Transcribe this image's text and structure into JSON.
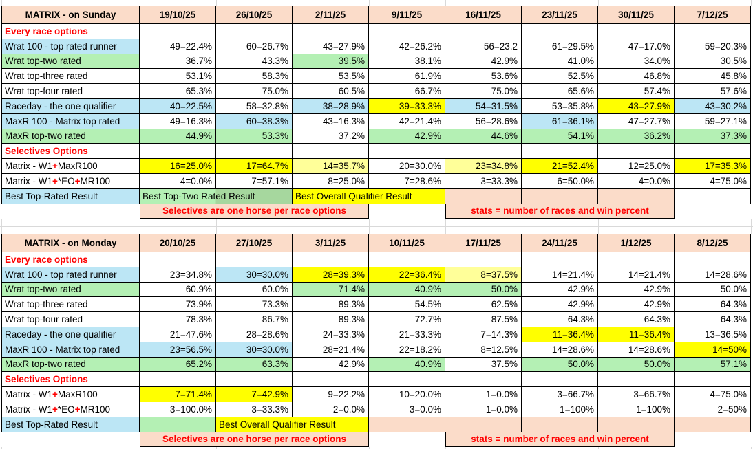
{
  "colors": {
    "peach": "#FBDCC9",
    "light_blue": "#BCE6F5",
    "light_green": "#B4F0B4",
    "medium_green": "#A6D79E",
    "yellow": "#FFFF00",
    "pale_yellow": "#FFFF99",
    "red_text": "#FF0000",
    "border": "#000000",
    "gridline": "#D9D9D9"
  },
  "sheet": {
    "tables": [
      {
        "name": "sunday",
        "title": "MATRIX - on Sunday",
        "dates": [
          "19/10/25",
          "26/10/25",
          "2/11/25",
          "9/11/25",
          "16/11/25",
          "23/11/25",
          "30/11/25",
          "7/12/25"
        ],
        "rows": [
          {
            "kind": "section",
            "label": "Every race options"
          },
          {
            "kind": "data",
            "label": "Wrat 100 - top rated runner",
            "label_bg": "b",
            "cells": [
              [
                "49=22.4%",
                "w"
              ],
              [
                "60=26.7%",
                "w"
              ],
              [
                "43=27.9%",
                "w"
              ],
              [
                "42=26.2%",
                "w"
              ],
              [
                "56=23.2",
                "w"
              ],
              [
                "61=29.5%",
                "w"
              ],
              [
                "47=17.0%",
                "w"
              ],
              [
                "59=20.3%",
                "w"
              ]
            ]
          },
          {
            "kind": "data",
            "label": "Wrat top-two rated",
            "label_bg": "g",
            "cells": [
              [
                "36.7%",
                "w"
              ],
              [
                "43.3%",
                "w"
              ],
              [
                "39.5%",
                "g"
              ],
              [
                "38.1%",
                "w"
              ],
              [
                "42.9%",
                "w"
              ],
              [
                "41.0%",
                "w"
              ],
              [
                "34.0%",
                "w"
              ],
              [
                "30.5%",
                "w"
              ]
            ]
          },
          {
            "kind": "data",
            "label": "Wrat top-three rated",
            "label_bg": "w",
            "cells": [
              [
                "53.1%",
                "w"
              ],
              [
                "58.3%",
                "w"
              ],
              [
                "53.5%",
                "w"
              ],
              [
                "61.9%",
                "w"
              ],
              [
                "53.6%",
                "w"
              ],
              [
                "52.5%",
                "w"
              ],
              [
                "46.8%",
                "w"
              ],
              [
                "45.8%",
                "w"
              ]
            ]
          },
          {
            "kind": "data",
            "label": "Wrat top-four rated",
            "label_bg": "w",
            "cells": [
              [
                "65.3%",
                "w"
              ],
              [
                "75.0%",
                "w"
              ],
              [
                "60.5%",
                "w"
              ],
              [
                "66.7%",
                "w"
              ],
              [
                "75.0%",
                "w"
              ],
              [
                "65.6%",
                "w"
              ],
              [
                "57.4%",
                "w"
              ],
              [
                "57.6%",
                "w"
              ]
            ]
          },
          {
            "kind": "data",
            "label": "Raceday - the one qualifier",
            "label_bg": "b",
            "cells": [
              [
                "40=22.5%",
                "b"
              ],
              [
                "58=32.8%",
                "w"
              ],
              [
                "38=28.9%",
                "b"
              ],
              [
                "39=33.3%",
                "y"
              ],
              [
                "54=31.5%",
                "b"
              ],
              [
                "53=35.8%",
                "w"
              ],
              [
                "43=27.9%",
                "y"
              ],
              [
                "43=30.2%",
                "b"
              ]
            ]
          },
          {
            "kind": "data",
            "label": "MaxR 100 - Matrix top rated",
            "label_bg": "b",
            "cells": [
              [
                "49=16.3%",
                "w"
              ],
              [
                "60=38.3%",
                "b"
              ],
              [
                "43=16.3%",
                "w"
              ],
              [
                "42=21.4%",
                "w"
              ],
              [
                "56=28.6%",
                "w"
              ],
              [
                "61=36.1%",
                "b"
              ],
              [
                "47=27.7%",
                "w"
              ],
              [
                "59=27.1%",
                "w"
              ]
            ]
          },
          {
            "kind": "data",
            "label": "MaxR top-two rated",
            "label_bg": "g",
            "cells": [
              [
                "44.9%",
                "g"
              ],
              [
                "53.3%",
                "g"
              ],
              [
                "37.2%",
                "w"
              ],
              [
                "42.9%",
                "g"
              ],
              [
                "44.6%",
                "g"
              ],
              [
                "54.1%",
                "g"
              ],
              [
                "36.2%",
                "g"
              ],
              [
                "37.3%",
                "g"
              ]
            ]
          },
          {
            "kind": "section",
            "label": "Selectives Options"
          },
          {
            "kind": "data",
            "parts": [
              "Matrix - W1",
              "+",
              "MaxR100"
            ],
            "label_bg": "w",
            "cells": [
              [
                "16=25.0%",
                "y"
              ],
              [
                "17=64.7%",
                "y"
              ],
              [
                "14=35.7%",
                "p"
              ],
              [
                "20=30.0%",
                "w"
              ],
              [
                "23=34.8%",
                "p"
              ],
              [
                "21=52.4%",
                "y"
              ],
              [
                "12=25.0%",
                "w"
              ],
              [
                "17=35.3%",
                "y"
              ]
            ]
          },
          {
            "kind": "data",
            "parts": [
              "Matrix - W1",
              "+",
              "*EO",
              "+",
              "MR100"
            ],
            "label_bg": "w",
            "cells": [
              [
                "4=0.0%",
                "w"
              ],
              [
                "7=57.1%",
                "w"
              ],
              [
                "8=25.0%",
                "w"
              ],
              [
                "7=28.6%",
                "w"
              ],
              [
                "3=33.3%",
                "w"
              ],
              [
                "6=50.0%",
                "w"
              ],
              [
                "4=0.0%",
                "w"
              ],
              [
                "4=75.0%",
                "w"
              ]
            ]
          }
        ],
        "footer_best": {
          "label": "Best Top-Rated Result",
          "segments": [
            {
              "text": "Best Top-Two Rated Result",
              "span": 2,
              "bg": "g2"
            },
            {
              "text": "Best Overall Qualifier Result",
              "span": 2,
              "bg": "y"
            },
            {
              "text": "",
              "span": 1,
              "bg": "k"
            },
            {
              "text": "",
              "span": 1,
              "bg": "k"
            },
            {
              "text": "",
              "span": 1,
              "bg": "k"
            },
            {
              "text": "",
              "span": 1,
              "bg": "w"
            }
          ]
        },
        "footer_note": {
          "note1": "Selectives are one horse per race options",
          "note2": "stats = number of races and win percent"
        }
      },
      {
        "name": "monday",
        "title": "MATRIX - on Monday",
        "dates": [
          "20/10/25",
          "27/10/25",
          "3/11/25",
          "10/11/25",
          "17/11/25",
          "24/11/25",
          "1/12/25",
          "8/12/25"
        ],
        "rows": [
          {
            "kind": "section",
            "label": "Every race options"
          },
          {
            "kind": "data",
            "label": "Wrat 100 - top rated runner",
            "label_bg": "b",
            "cells": [
              [
                "23=34.8%",
                "w"
              ],
              [
                "30=30.0%",
                "b"
              ],
              [
                "28=39.3%",
                "y"
              ],
              [
                "22=36.4%",
                "y"
              ],
              [
                "8=37.5%",
                "p"
              ],
              [
                "14=21.4%",
                "w"
              ],
              [
                "14=21.4%",
                "w"
              ],
              [
                "14=28.6%",
                "w"
              ]
            ]
          },
          {
            "kind": "data",
            "label": "Wrat top-two rated",
            "label_bg": "g",
            "cells": [
              [
                "60.9%",
                "w"
              ],
              [
                "60.0%",
                "w"
              ],
              [
                "71.4%",
                "g"
              ],
              [
                "40.9%",
                "g"
              ],
              [
                "50.0%",
                "g"
              ],
              [
                "42.9%",
                "w"
              ],
              [
                "42.9%",
                "w"
              ],
              [
                "50.0%",
                "w"
              ]
            ]
          },
          {
            "kind": "data",
            "label": "Wrat top-three rated",
            "label_bg": "w",
            "cells": [
              [
                "73.9%",
                "w"
              ],
              [
                "73.3%",
                "w"
              ],
              [
                "89.3%",
                "w"
              ],
              [
                "54.5%",
                "w"
              ],
              [
                "62.5%",
                "w"
              ],
              [
                "42.9%",
                "w"
              ],
              [
                "42.9%",
                "w"
              ],
              [
                "64.3%",
                "w"
              ]
            ]
          },
          {
            "kind": "data",
            "label": "Wrat top-four rated",
            "label_bg": "w",
            "cells": [
              [
                "78.3%",
                "w"
              ],
              [
                "86.7%",
                "w"
              ],
              [
                "89.3%",
                "w"
              ],
              [
                "72.7%",
                "w"
              ],
              [
                "87.5%",
                "w"
              ],
              [
                "64.3%",
                "w"
              ],
              [
                "64.3%",
                "w"
              ],
              [
                "64.3%",
                "w"
              ]
            ]
          },
          {
            "kind": "data",
            "label": "Raceday - the one qualifier",
            "label_bg": "b",
            "cells": [
              [
                "21=47.6%",
                "w"
              ],
              [
                "28=28.6%",
                "w"
              ],
              [
                "24=33.3%",
                "w"
              ],
              [
                "21=33.3%",
                "w"
              ],
              [
                "7=14.3%",
                "w"
              ],
              [
                "11=36.4%",
                "y"
              ],
              [
                "11=36.4%",
                "y"
              ],
              [
                "13=36.5%",
                "w"
              ]
            ]
          },
          {
            "kind": "data",
            "label": "MaxR 100 - Matrix top rated",
            "label_bg": "b",
            "cells": [
              [
                "23=56.5%",
                "b"
              ],
              [
                "30=30.0%",
                "b"
              ],
              [
                "28=21.4%",
                "w"
              ],
              [
                "22=18.2%",
                "w"
              ],
              [
                "8=12.5%",
                "w"
              ],
              [
                "14=28.6%",
                "w"
              ],
              [
                "14=28.6%",
                "w"
              ],
              [
                "14=50%",
                "y"
              ]
            ]
          },
          {
            "kind": "data",
            "label": "MaxR top-two rated",
            "label_bg": "g",
            "cells": [
              [
                "65.2%",
                "g"
              ],
              [
                "63.3%",
                "g"
              ],
              [
                "42.9%",
                "w"
              ],
              [
                "40.9%",
                "g"
              ],
              [
                "37.5%",
                "w"
              ],
              [
                "50.0%",
                "g"
              ],
              [
                "50.0%",
                "g"
              ],
              [
                "57.1%",
                "g"
              ]
            ]
          },
          {
            "kind": "section",
            "label": "Selectives Options"
          },
          {
            "kind": "data",
            "parts": [
              "Matrix - W1",
              "+",
              "MaxR100"
            ],
            "label_bg": "w",
            "cells": [
              [
                "7=71.4%",
                "y"
              ],
              [
                "7=42.9%",
                "y"
              ],
              [
                "9=22.2%",
                "w"
              ],
              [
                "10=20.0%",
                "w"
              ],
              [
                "1=0.0%",
                "w"
              ],
              [
                "3=66.7%",
                "w"
              ],
              [
                "3=66.7%",
                "w"
              ],
              [
                "4=75.0%",
                "w"
              ]
            ]
          },
          {
            "kind": "data",
            "parts": [
              "Matrix - W1",
              "+",
              "*EO",
              "+",
              "MR100"
            ],
            "label_bg": "w",
            "cells": [
              [
                "3=100.0%",
                "w"
              ],
              [
                "3=33.3%",
                "w"
              ],
              [
                "2=0.0%",
                "w"
              ],
              [
                "3=0.0%",
                "w"
              ],
              [
                "1=0.0%",
                "w"
              ],
              [
                "1=100%",
                "w"
              ],
              [
                "1=100%",
                "w"
              ],
              [
                "2=50%",
                "w"
              ]
            ]
          }
        ],
        "footer_best": {
          "label": "Best Top-Rated Result",
          "segments": [
            {
              "text": "",
              "span": 1,
              "bg": "g"
            },
            {
              "text": "Best Overall Qualifier Result",
              "span": 2,
              "bg": "y"
            },
            {
              "text": "",
              "span": 1,
              "bg": "k"
            },
            {
              "text": "",
              "span": 1,
              "bg": "k"
            },
            {
              "text": "",
              "span": 1,
              "bg": "k"
            },
            {
              "text": "",
              "span": 1,
              "bg": "k"
            },
            {
              "text": "",
              "span": 1,
              "bg": "k"
            }
          ]
        },
        "footer_note": {
          "note1": "Selectives are one horse per race options",
          "note2": "stats = number of races and win percent"
        }
      }
    ]
  }
}
